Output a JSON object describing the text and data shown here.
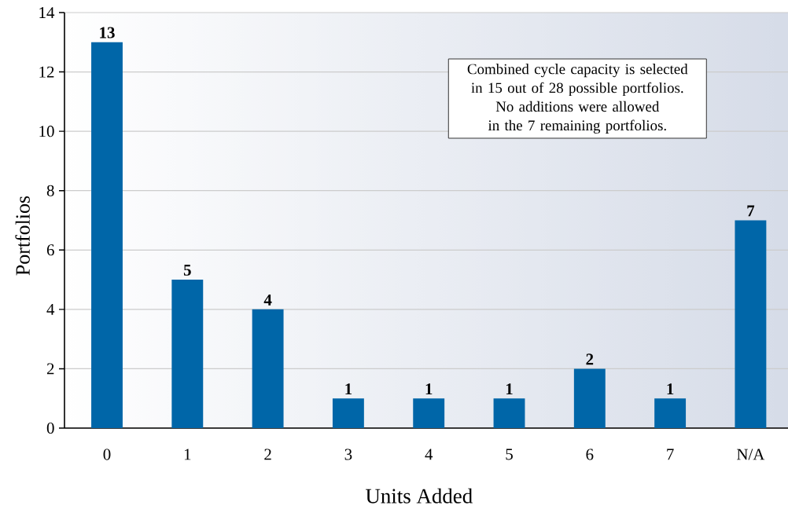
{
  "chart_data": {
    "type": "bar",
    "xlabel": "Units Added",
    "ylabel": "Portfolios",
    "categories": [
      "0",
      "1",
      "2",
      "3",
      "4",
      "5",
      "6",
      "7",
      "N/A"
    ],
    "values": [
      13,
      5,
      4,
      1,
      1,
      1,
      2,
      1,
      7
    ],
    "color": "#0066a8",
    "ylim": [
      0,
      14
    ],
    "yticks": [
      0,
      2,
      4,
      6,
      8,
      10,
      12,
      14
    ],
    "grid": "y",
    "data_labels": true,
    "annotations": [
      "Combined cycle capacity is selected in 15 out of 28 possible portfolios. No additions were allowed in the 7 remaining portfolios."
    ]
  }
}
